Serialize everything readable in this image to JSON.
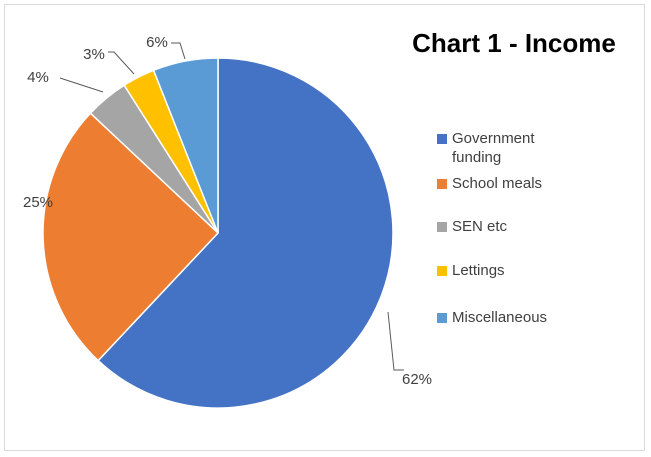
{
  "chart_data": {
    "type": "pie",
    "title": "Chart 1 - Income",
    "legend_position": "right",
    "slices": [
      {
        "label": "Government funding",
        "legend_lines": [
          "Government",
          "funding"
        ],
        "value": 62,
        "display": "62%",
        "color": "#4472C4"
      },
      {
        "label": "School meals",
        "legend_lines": [
          "School meals"
        ],
        "value": 25,
        "display": "25%",
        "color": "#ED7D31"
      },
      {
        "label": "SEN etc",
        "legend_lines": [
          "SEN etc"
        ],
        "value": 4,
        "display": "4%",
        "color": "#A5A5A5"
      },
      {
        "label": "Lettings",
        "legend_lines": [
          "Lettings"
        ],
        "value": 3,
        "display": "3%",
        "color": "#FFC000"
      },
      {
        "label": "Miscellaneous",
        "legend_lines": [
          "Miscellaneous"
        ],
        "value": 6,
        "display": "6%",
        "color": "#5B9BD5"
      }
    ]
  }
}
